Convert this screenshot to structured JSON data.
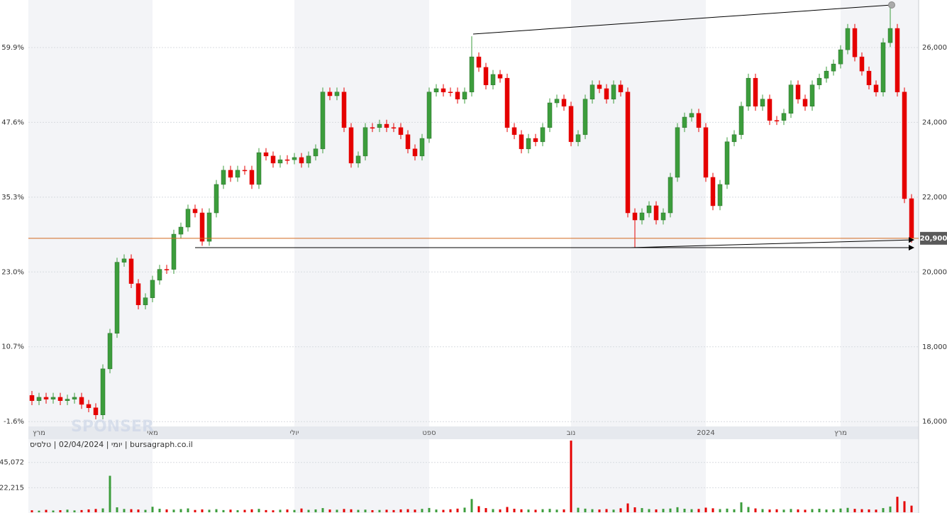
{
  "chart_data": [
    {
      "type": "candlestick",
      "watermark": "SPONSER",
      "categories": [
        null,
        "מרץ",
        null,
        null,
        null,
        null,
        null,
        null,
        null,
        null,
        null,
        null,
        null,
        null,
        null,
        null,
        null,
        "מאי",
        null,
        null,
        null,
        null,
        null,
        null,
        null,
        null,
        null,
        null,
        null,
        null,
        null,
        null,
        null,
        null,
        null,
        null,
        null,
        "יולי",
        null,
        null,
        null,
        null,
        null,
        null,
        null,
        null,
        null,
        null,
        null,
        null,
        null,
        null,
        null,
        null,
        null,
        null,
        "ספט",
        null,
        null,
        null,
        null,
        null,
        null,
        null,
        null,
        null,
        null,
        null,
        null,
        null,
        null,
        null,
        null,
        null,
        null,
        null,
        "נוב",
        null,
        null,
        null,
        null,
        null,
        null,
        null,
        null,
        null,
        null,
        null,
        null,
        null,
        null,
        null,
        null,
        null,
        null,
        "2024",
        null,
        null,
        null,
        null,
        null,
        null,
        null,
        null,
        null,
        null,
        null,
        null,
        null,
        null,
        null,
        null,
        null,
        null,
        "מרץ",
        null,
        null,
        null,
        null,
        null,
        null,
        null,
        null,
        null,
        null
      ],
      "open": [
        16700,
        16560,
        16650,
        16600,
        16650,
        16560,
        16600,
        16650,
        16460,
        16370,
        16180,
        17410,
        18360,
        20260,
        20350,
        19690,
        19120,
        19310,
        19780,
        20070,
        20070,
        21010,
        21200,
        21680,
        21580,
        20820,
        21580,
        22340,
        22720,
        22530,
        22720,
        22720,
        22340,
        23190,
        23100,
        22910,
        23000,
        23000,
        23060,
        22910,
        23100,
        23290,
        24810,
        24710,
        24810,
        23860,
        22910,
        23100,
        23860,
        23860,
        23950,
        23860,
        23860,
        23670,
        23290,
        23100,
        23570,
        24810,
        24900,
        24810,
        24810,
        24620,
        24810,
        25750,
        25470,
        25000,
        25280,
        25180,
        23860,
        23670,
        23290,
        23570,
        23480,
        23860,
        24520,
        24620,
        24430,
        23480,
        23670,
        24620,
        25000,
        24900,
        24620,
        25000,
        24810,
        21580,
        21390,
        21580,
        21770,
        21390,
        21580,
        22530,
        23860,
        24140,
        24240,
        23860,
        22530,
        21770,
        22340,
        23480,
        23670,
        24430,
        25180,
        24430,
        24620,
        24050,
        24050,
        24240,
        25000,
        24620,
        24430,
        25000,
        25180,
        25370,
        25560,
        25940,
        26510,
        25750,
        25370,
        25000,
        24810,
        26130,
        26510,
        24810,
        21960
      ],
      "high": [
        16820,
        16770,
        16770,
        16770,
        16770,
        16720,
        16770,
        16770,
        16580,
        16490,
        17530,
        18480,
        20380,
        20470,
        20470,
        19810,
        19430,
        19900,
        20190,
        20190,
        21130,
        21320,
        21800,
        21800,
        21700,
        21700,
        22460,
        22840,
        22840,
        22840,
        22840,
        22840,
        23310,
        23310,
        23220,
        23120,
        23120,
        23180,
        23180,
        23220,
        23410,
        24930,
        24930,
        24930,
        24930,
        23980,
        23220,
        23980,
        23980,
        24070,
        24070,
        23980,
        23980,
        23790,
        23410,
        23690,
        24930,
        25020,
        25020,
        24930,
        24930,
        24930,
        26300,
        25870,
        25590,
        25400,
        25400,
        25300,
        23980,
        23790,
        23690,
        23690,
        23980,
        24640,
        24740,
        24740,
        24550,
        23790,
        24740,
        25120,
        25120,
        25020,
        25120,
        25120,
        24930,
        21700,
        21700,
        21890,
        21890,
        21700,
        22650,
        23980,
        24260,
        24360,
        24360,
        23980,
        22650,
        22460,
        23600,
        23790,
        24550,
        25300,
        25300,
        24740,
        24740,
        24170,
        24360,
        25120,
        25120,
        24740,
        25120,
        25300,
        25490,
        25680,
        26060,
        26630,
        26630,
        25870,
        25490,
        25120,
        26250,
        27130,
        26630,
        24930,
        22080
      ],
      "low": [
        16440,
        16440,
        16480,
        16480,
        16440,
        16440,
        16480,
        16340,
        16250,
        16060,
        16060,
        17290,
        18240,
        20140,
        19570,
        19000,
        19000,
        19190,
        19660,
        19950,
        19950,
        20890,
        21080,
        21460,
        20700,
        20700,
        21460,
        22220,
        22410,
        22410,
        22600,
        22220,
        22220,
        22980,
        22790,
        22790,
        22880,
        22880,
        22790,
        22790,
        22980,
        23170,
        24590,
        24590,
        23740,
        22790,
        22790,
        22980,
        23740,
        23740,
        23740,
        23740,
        23550,
        23170,
        22980,
        22980,
        23450,
        24690,
        24690,
        24690,
        24500,
        24500,
        24690,
        25350,
        24880,
        24880,
        25060,
        23740,
        23550,
        23170,
        23170,
        23360,
        23360,
        23740,
        24400,
        24310,
        23360,
        23360,
        23550,
        24500,
        24780,
        24500,
        24500,
        24690,
        21460,
        20650,
        21270,
        21460,
        21270,
        21270,
        21460,
        22410,
        23740,
        24020,
        23740,
        22410,
        21650,
        21650,
        22220,
        23360,
        23550,
        24310,
        24310,
        24310,
        23930,
        23930,
        23930,
        24120,
        24500,
        24310,
        24310,
        24880,
        25060,
        25250,
        25440,
        25820,
        25630,
        25250,
        24880,
        24690,
        24690,
        26010,
        24690,
        21840,
        20780
      ],
      "close": [
        16560,
        16650,
        16600,
        16650,
        16560,
        16600,
        16650,
        16460,
        16370,
        16180,
        17410,
        18360,
        20260,
        20350,
        19690,
        19120,
        19310,
        19780,
        20070,
        20070,
        21010,
        21200,
        21680,
        21580,
        20820,
        21580,
        22340,
        22720,
        22530,
        22720,
        22720,
        22340,
        23190,
        23100,
        22910,
        23000,
        23000,
        23060,
        22910,
        23100,
        23290,
        24810,
        24710,
        24810,
        23860,
        22910,
        23100,
        23860,
        23860,
        23950,
        23860,
        23860,
        23670,
        23290,
        23100,
        23570,
        24810,
        24900,
        24810,
        24810,
        24620,
        24810,
        25750,
        25470,
        25000,
        25280,
        25180,
        23860,
        23670,
        23290,
        23570,
        23480,
        23860,
        24520,
        24620,
        24430,
        23480,
        23670,
        24620,
        25000,
        24900,
        24620,
        25000,
        24810,
        21580,
        21390,
        21580,
        21770,
        21390,
        21580,
        22530,
        23860,
        24140,
        24240,
        23860,
        22530,
        21770,
        22340,
        23480,
        23670,
        24430,
        25180,
        24430,
        24620,
        24050,
        24050,
        24240,
        25000,
        24620,
        24430,
        25000,
        25180,
        25370,
        25560,
        25940,
        26510,
        25750,
        25370,
        25000,
        24810,
        26130,
        26510,
        24810,
        21960,
        20900
      ],
      "up_color": "#3c9d3c",
      "down_color": "#e50000",
      "ylim": [
        15890,
        27270
      ],
      "yticks": [
        {
          "value": 16000,
          "label": "16,000"
        },
        {
          "value": 18000,
          "label": "18,000"
        },
        {
          "value": 20000,
          "label": "20,000"
        },
        {
          "value": 22000,
          "label": "22,000"
        },
        {
          "value": 24000,
          "label": "24,000"
        },
        {
          "value": 26000,
          "label": "26,000"
        }
      ],
      "y2lim": [
        -2.28,
        67.71
      ],
      "y2ticks": [
        {
          "value": -1.6,
          "label": "-1.6%"
        },
        {
          "value": 10.7,
          "label": "10.7%"
        },
        {
          "value": 23.0,
          "label": "23.0%"
        },
        {
          "value": 35.3,
          "label": "35.3%"
        },
        {
          "value": 47.6,
          "label": "47.6%"
        },
        {
          "value": 59.9,
          "label": "59.9%"
        }
      ],
      "grid": true,
      "last_price": {
        "value": 20900,
        "label": "20,900"
      },
      "last_price_color": "#d2691e"
    },
    {
      "type": "bar",
      "title": "יומי | 02/04/2024 | טלסיס | bursagraph.co.il",
      "values": [
        1800,
        1500,
        2200,
        1600,
        1900,
        2400,
        1700,
        2000,
        2600,
        3000,
        3500,
        33000,
        4500,
        3000,
        2800,
        2500,
        2200,
        5000,
        3200,
        2600,
        2400,
        2900,
        3500,
        2100,
        2600,
        2300,
        2800,
        2000,
        2400,
        1900,
        2200,
        2700,
        3100,
        2000,
        1800,
        2300,
        2500,
        2100,
        3400,
        2200,
        2600,
        3800,
        2500,
        2300,
        3000,
        2700,
        2200,
        2400,
        1900,
        2100,
        2300,
        2000,
        2600,
        2800,
        2400,
        3100,
        3900,
        2500,
        2200,
        2700,
        3300,
        4200,
        12000,
        5500,
        3800,
        2900,
        2600,
        4800,
        3200,
        2700,
        2500,
        2300,
        2800,
        3100,
        2400,
        2600,
        64800,
        4100,
        3300,
        2800,
        2500,
        2900,
        2400,
        3600,
        8000,
        4500,
        3800,
        2900,
        2600,
        3100,
        3400,
        4600,
        3200,
        2800,
        3000,
        4200,
        3600,
        2900,
        3300,
        2700,
        9000,
        4800,
        3500,
        2900,
        2500,
        2700,
        2400,
        3000,
        2600,
        2300,
        2900,
        3200,
        2500,
        2700,
        3400,
        4000,
        3100,
        2800,
        2600,
        2400,
        3800,
        5200,
        14000,
        10000,
        6000
      ],
      "ylim": [
        0,
        65400
      ],
      "yticks": [
        {
          "value": 22215,
          "label": "22,215"
        },
        {
          "value": 45072,
          "label": "45,072"
        }
      ],
      "grid": true
    }
  ]
}
